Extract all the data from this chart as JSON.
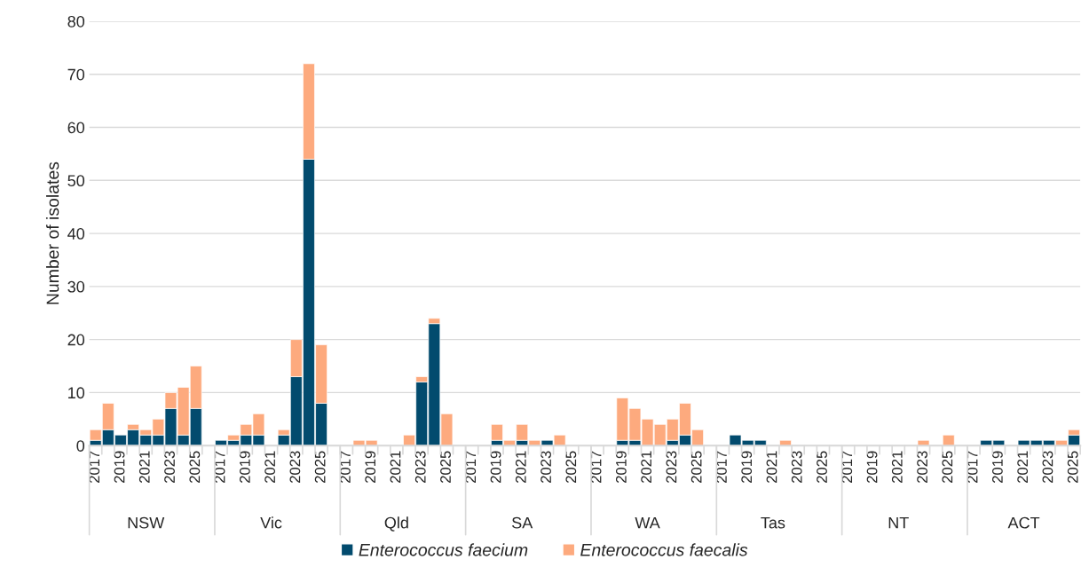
{
  "chart_data": {
    "type": "bar",
    "stacked": true,
    "ylabel": "Number of isolates",
    "categories": [
      "2017",
      null,
      "2019",
      null,
      "2021",
      null,
      "2023",
      null,
      "2025",
      null,
      "2017",
      null,
      "2019",
      null,
      "2021",
      null,
      "2023",
      null,
      "2025",
      null,
      "2017",
      null,
      "2019",
      null,
      "2021",
      null,
      "2023",
      null,
      "2025",
      null,
      "2017",
      null,
      "2019",
      null,
      "2021",
      null,
      "2023",
      null,
      "2025",
      null,
      "2017",
      null,
      "2019",
      null,
      "2021",
      null,
      "2023",
      null,
      "2025",
      null,
      "2017",
      null,
      "2019",
      null,
      "2021",
      null,
      "2023",
      null,
      "2025",
      null,
      "2017",
      null,
      "2019",
      null,
      "2021",
      null,
      "2023",
      null,
      "2025",
      null,
      "2017",
      null,
      "2019",
      null,
      "2021",
      null,
      "2023",
      null,
      "2025"
    ],
    "series": [
      {
        "name": "Enterococcus faecium",
        "color": "#024b6e",
        "values": [
          1,
          3,
          2,
          3,
          2,
          2,
          7,
          2,
          7,
          null,
          1,
          1,
          2,
          2,
          0,
          2,
          13,
          54,
          8,
          null,
          0,
          0,
          0,
          0,
          0,
          0,
          12,
          23,
          0,
          null,
          0,
          0,
          1,
          0,
          1,
          0,
          1,
          0,
          0,
          null,
          0,
          0,
          1,
          1,
          0,
          0,
          1,
          2,
          0,
          null,
          0,
          2,
          1,
          1,
          0,
          0,
          0,
          0,
          0,
          null,
          0,
          0,
          0,
          0,
          0,
          0,
          0,
          0,
          0,
          null,
          0,
          1,
          1,
          0,
          1,
          1,
          1,
          0,
          2
        ]
      },
      {
        "name": "Enterococcus faecalis",
        "color": "#fdaa7e",
        "values": [
          2,
          5,
          0,
          1,
          1,
          3,
          3,
          9,
          8,
          null,
          0,
          1,
          2,
          4,
          0,
          1,
          7,
          18,
          11,
          null,
          0,
          1,
          1,
          0,
          0,
          2,
          1,
          1,
          6,
          null,
          0,
          0,
          3,
          1,
          3,
          1,
          0,
          2,
          0,
          null,
          0,
          0,
          8,
          6,
          5,
          4,
          4,
          6,
          3,
          null,
          0,
          0,
          0,
          0,
          0,
          1,
          0,
          0,
          0,
          null,
          0,
          0,
          0,
          0,
          0,
          0,
          1,
          0,
          2,
          null,
          0,
          0,
          0,
          0,
          0,
          0,
          0,
          1,
          1
        ]
      }
    ],
    "annotations": [
      "NSW",
      "Vic",
      "Qld",
      "SA",
      "WA",
      "Tas",
      "NT",
      "ACT"
    ],
    "ylim": [
      0,
      80
    ],
    "yticks": [
      0,
      10,
      20,
      30,
      40,
      50,
      60,
      70,
      80
    ],
    "grid": "y",
    "legend": "bottom"
  }
}
